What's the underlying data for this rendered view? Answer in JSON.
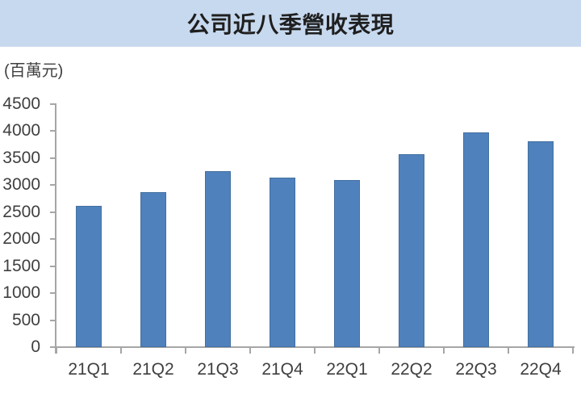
{
  "header": {
    "title": "公司近八季營收表現"
  },
  "chart_data": {
    "type": "bar",
    "title": "公司近八季營收表現",
    "unit_label": "(百萬元)",
    "categories": [
      "21Q1",
      "21Q2",
      "21Q3",
      "21Q4",
      "22Q1",
      "22Q2",
      "22Q3",
      "22Q4"
    ],
    "values": [
      2620,
      2870,
      3260,
      3140,
      3090,
      3580,
      3980,
      3810
    ],
    "xlabel": "",
    "ylabel": "百萬元",
    "ylim": [
      0,
      4500
    ],
    "ytick_step": 500,
    "yticks": [
      0,
      500,
      1000,
      1500,
      2000,
      2500,
      3000,
      3500,
      4000,
      4500
    ],
    "grid": false,
    "legend": false,
    "colors": {
      "bar_fill": "#4F81BD",
      "bar_edge": "#44709F",
      "axis": "#A6A6A6",
      "tick_label": "#3F3F3F",
      "title_text": "#1F1F1F",
      "header_bg": "#C7D9EF",
      "plot_bg": "#FFFFFF"
    }
  }
}
